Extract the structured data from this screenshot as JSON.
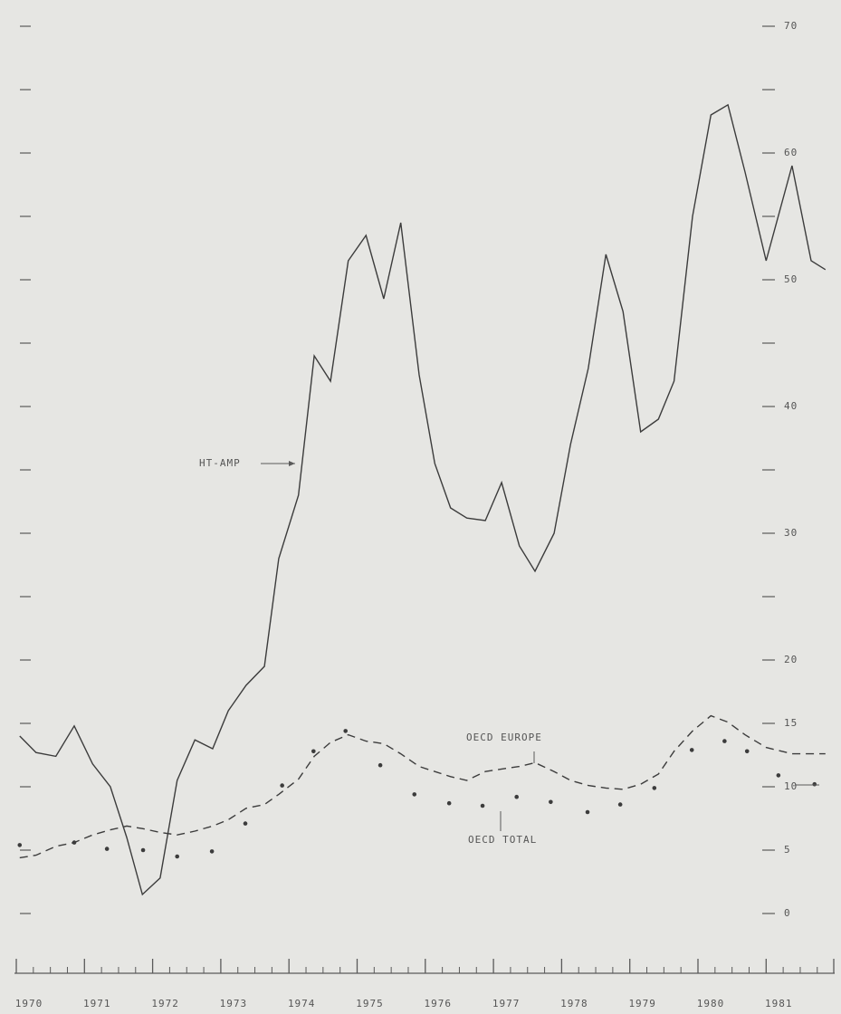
{
  "chart_data": {
    "type": "line",
    "xlim": [
      1970,
      1982
    ],
    "xticks": [
      1970,
      1971,
      1972,
      1973,
      1974,
      1975,
      1976,
      1977,
      1978,
      1979,
      1980,
      1981
    ],
    "ylim": [
      0,
      70
    ],
    "yticks": [
      0,
      5,
      10,
      15,
      20,
      30,
      40,
      50,
      60,
      70
    ],
    "minor_yticks": [
      25,
      35,
      45,
      55,
      65
    ],
    "series": [
      {
        "name": "HT-AMP",
        "color": "#3c3c3c",
        "style": "solid",
        "x": [
          1970.05,
          1970.29,
          1970.58,
          1970.85,
          1971.12,
          1971.38,
          1971.62,
          1971.85,
          1972.11,
          1972.36,
          1972.62,
          1972.88,
          1973.11,
          1973.37,
          1973.64,
          1973.85,
          1974.14,
          1974.37,
          1974.61,
          1974.87,
          1975.13,
          1975.39,
          1975.64,
          1975.91,
          1976.14,
          1976.37,
          1976.61,
          1976.88,
          1977.12,
          1977.38,
          1977.61,
          1977.89,
          1978.13,
          1978.39,
          1978.65,
          1978.9,
          1979.16,
          1979.42,
          1979.65,
          1979.92,
          1980.19,
          1980.44,
          1980.69,
          1981.0,
          1981.38,
          1981.66,
          1981.87
        ],
        "values": [
          14.0,
          12.7,
          12.4,
          14.8,
          11.8,
          10.0,
          6.0,
          1.5,
          2.8,
          10.5,
          13.7,
          13.0,
          16.0,
          18.0,
          19.5,
          28.0,
          33.0,
          44.0,
          42.0,
          51.5,
          53.5,
          48.5,
          54.5,
          42.5,
          35.5,
          32.0,
          31.2,
          31.0,
          34.0,
          29.0,
          27.0,
          30.0,
          37.0,
          43.0,
          52.0,
          47.5,
          38.0,
          39.0,
          42.0,
          55.0,
          63.0,
          63.8,
          58.5,
          51.5,
          59.0,
          51.5,
          50.8
        ]
      },
      {
        "name": "OECD EUROPE",
        "color": "#3c3c3c",
        "style": "dashed",
        "x": [
          1970.05,
          1970.29,
          1970.58,
          1970.85,
          1971.12,
          1971.38,
          1971.62,
          1971.85,
          1972.11,
          1972.36,
          1972.62,
          1972.88,
          1973.11,
          1973.37,
          1973.64,
          1973.85,
          1974.14,
          1974.37,
          1974.61,
          1974.87,
          1975.13,
          1975.39,
          1975.64,
          1975.91,
          1976.14,
          1976.37,
          1976.61,
          1976.88,
          1977.12,
          1977.38,
          1977.61,
          1977.89,
          1978.13,
          1978.39,
          1978.65,
          1978.9,
          1979.16,
          1979.42,
          1979.65,
          1979.92,
          1980.19,
          1980.44,
          1980.69,
          1981.0,
          1981.38,
          1981.66,
          1981.87
        ],
        "values": [
          4.4,
          4.6,
          5.3,
          5.6,
          6.2,
          6.6,
          6.9,
          6.7,
          6.4,
          6.2,
          6.5,
          6.9,
          7.4,
          8.3,
          8.6,
          9.4,
          10.6,
          12.4,
          13.5,
          14.1,
          13.6,
          13.4,
          12.6,
          11.6,
          11.2,
          10.8,
          10.5,
          11.2,
          11.4,
          11.6,
          11.9,
          11.2,
          10.5,
          10.1,
          9.9,
          9.8,
          10.2,
          11.0,
          12.8,
          14.4,
          15.6,
          15.1,
          14.1,
          13.1,
          12.6,
          12.6,
          12.6
        ]
      },
      {
        "name": "OECD TOTAL",
        "color": "#3c3c3c",
        "style": "dotted",
        "x": [
          1970.05,
          1970.85,
          1971.33,
          1971.86,
          1972.36,
          1972.87,
          1973.36,
          1973.9,
          1974.36,
          1974.83,
          1975.34,
          1975.84,
          1976.35,
          1976.84,
          1977.34,
          1977.84,
          1978.38,
          1978.86,
          1979.36,
          1979.91,
          1980.39,
          1980.72,
          1981.18,
          1981.71
        ],
        "values": [
          5.4,
          5.6,
          5.1,
          5.0,
          4.5,
          4.9,
          7.1,
          10.1,
          12.8,
          14.4,
          11.7,
          9.4,
          8.7,
          8.5,
          9.2,
          8.8,
          8.0,
          8.6,
          9.9,
          12.9,
          13.6,
          12.8,
          10.9,
          10.2
        ]
      }
    ]
  }
}
